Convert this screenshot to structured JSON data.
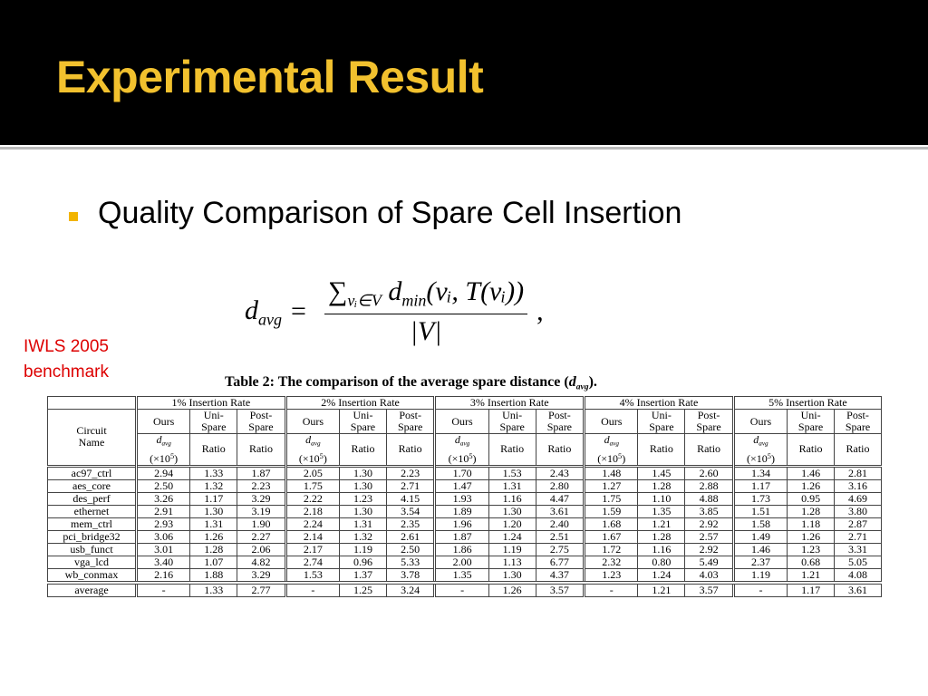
{
  "slide": {
    "title": "Experimental Result",
    "bullet": "Quality Comparison of Spare Cell Insertion",
    "note": [
      "IWLS 2005",
      "benchmark"
    ]
  },
  "formula": {
    "lhs": "d",
    "lhs_sub": "avg",
    "equals": "=",
    "sum": "∑",
    "sum_sub": "vᵢ∈V",
    "term": "d",
    "term_sub": "min",
    "args": "(vᵢ, T(vᵢ))",
    "denominator": "|V|",
    "trail": ","
  },
  "table": {
    "caption": {
      "label": "Table 2:",
      "text": "The comparison of the average spare distance (",
      "var": "d",
      "var_sub": "avg",
      "end": ")."
    },
    "groups": [
      "1% Insertion Rate",
      "2% Insertion Rate",
      "3% Insertion Rate",
      "4% Insertion Rate",
      "5% Insertion Rate"
    ],
    "circuit_label": [
      "Circuit",
      "Name"
    ],
    "methods": [
      [
        "Ours"
      ],
      [
        "Uni-",
        "Spare"
      ],
      [
        "Post-",
        "Spare"
      ]
    ],
    "unit": {
      "var": "d",
      "sub": "avg",
      "scale": "(×10",
      "exp": "5",
      "close": ")"
    },
    "ratio": "Ratio",
    "rows": [
      [
        "ac97_ctrl",
        "2.94",
        "1.33",
        "1.87",
        "2.05",
        "1.30",
        "2.23",
        "1.70",
        "1.53",
        "2.43",
        "1.48",
        "1.45",
        "2.60",
        "1.34",
        "1.46",
        "2.81"
      ],
      [
        "aes_core",
        "2.50",
        "1.32",
        "2.23",
        "1.75",
        "1.30",
        "2.71",
        "1.47",
        "1.31",
        "2.80",
        "1.27",
        "1.28",
        "2.88",
        "1.17",
        "1.26",
        "3.16"
      ],
      [
        "des_perf",
        "3.26",
        "1.17",
        "3.29",
        "2.22",
        "1.23",
        "4.15",
        "1.93",
        "1.16",
        "4.47",
        "1.75",
        "1.10",
        "4.88",
        "1.73",
        "0.95",
        "4.69"
      ],
      [
        "ethernet",
        "2.91",
        "1.30",
        "3.19",
        "2.18",
        "1.30",
        "3.54",
        "1.89",
        "1.30",
        "3.61",
        "1.59",
        "1.35",
        "3.85",
        "1.51",
        "1.28",
        "3.80"
      ],
      [
        "mem_ctrl",
        "2.93",
        "1.31",
        "1.90",
        "2.24",
        "1.31",
        "2.35",
        "1.96",
        "1.20",
        "2.40",
        "1.68",
        "1.21",
        "2.92",
        "1.58",
        "1.18",
        "2.87"
      ],
      [
        "pci_bridge32",
        "3.06",
        "1.26",
        "2.27",
        "2.14",
        "1.32",
        "2.61",
        "1.87",
        "1.24",
        "2.51",
        "1.67",
        "1.28",
        "2.57",
        "1.49",
        "1.26",
        "2.71"
      ],
      [
        "usb_funct",
        "3.01",
        "1.28",
        "2.06",
        "2.17",
        "1.19",
        "2.50",
        "1.86",
        "1.19",
        "2.75",
        "1.72",
        "1.16",
        "2.92",
        "1.46",
        "1.23",
        "3.31"
      ],
      [
        "vga_lcd",
        "3.40",
        "1.07",
        "4.82",
        "2.74",
        "0.96",
        "5.33",
        "2.00",
        "1.13",
        "6.77",
        "2.32",
        "0.80",
        "5.49",
        "2.37",
        "0.68",
        "5.05"
      ],
      [
        "wb_conmax",
        "2.16",
        "1.88",
        "3.29",
        "1.53",
        "1.37",
        "3.78",
        "1.35",
        "1.30",
        "4.37",
        "1.23",
        "1.24",
        "4.03",
        "1.19",
        "1.21",
        "4.08"
      ]
    ],
    "average": [
      "average",
      "-",
      "1.33",
      "2.77",
      "-",
      "1.25",
      "3.24",
      "-",
      "1.26",
      "3.57",
      "-",
      "1.21",
      "3.57",
      "-",
      "1.17",
      "3.61"
    ]
  }
}
